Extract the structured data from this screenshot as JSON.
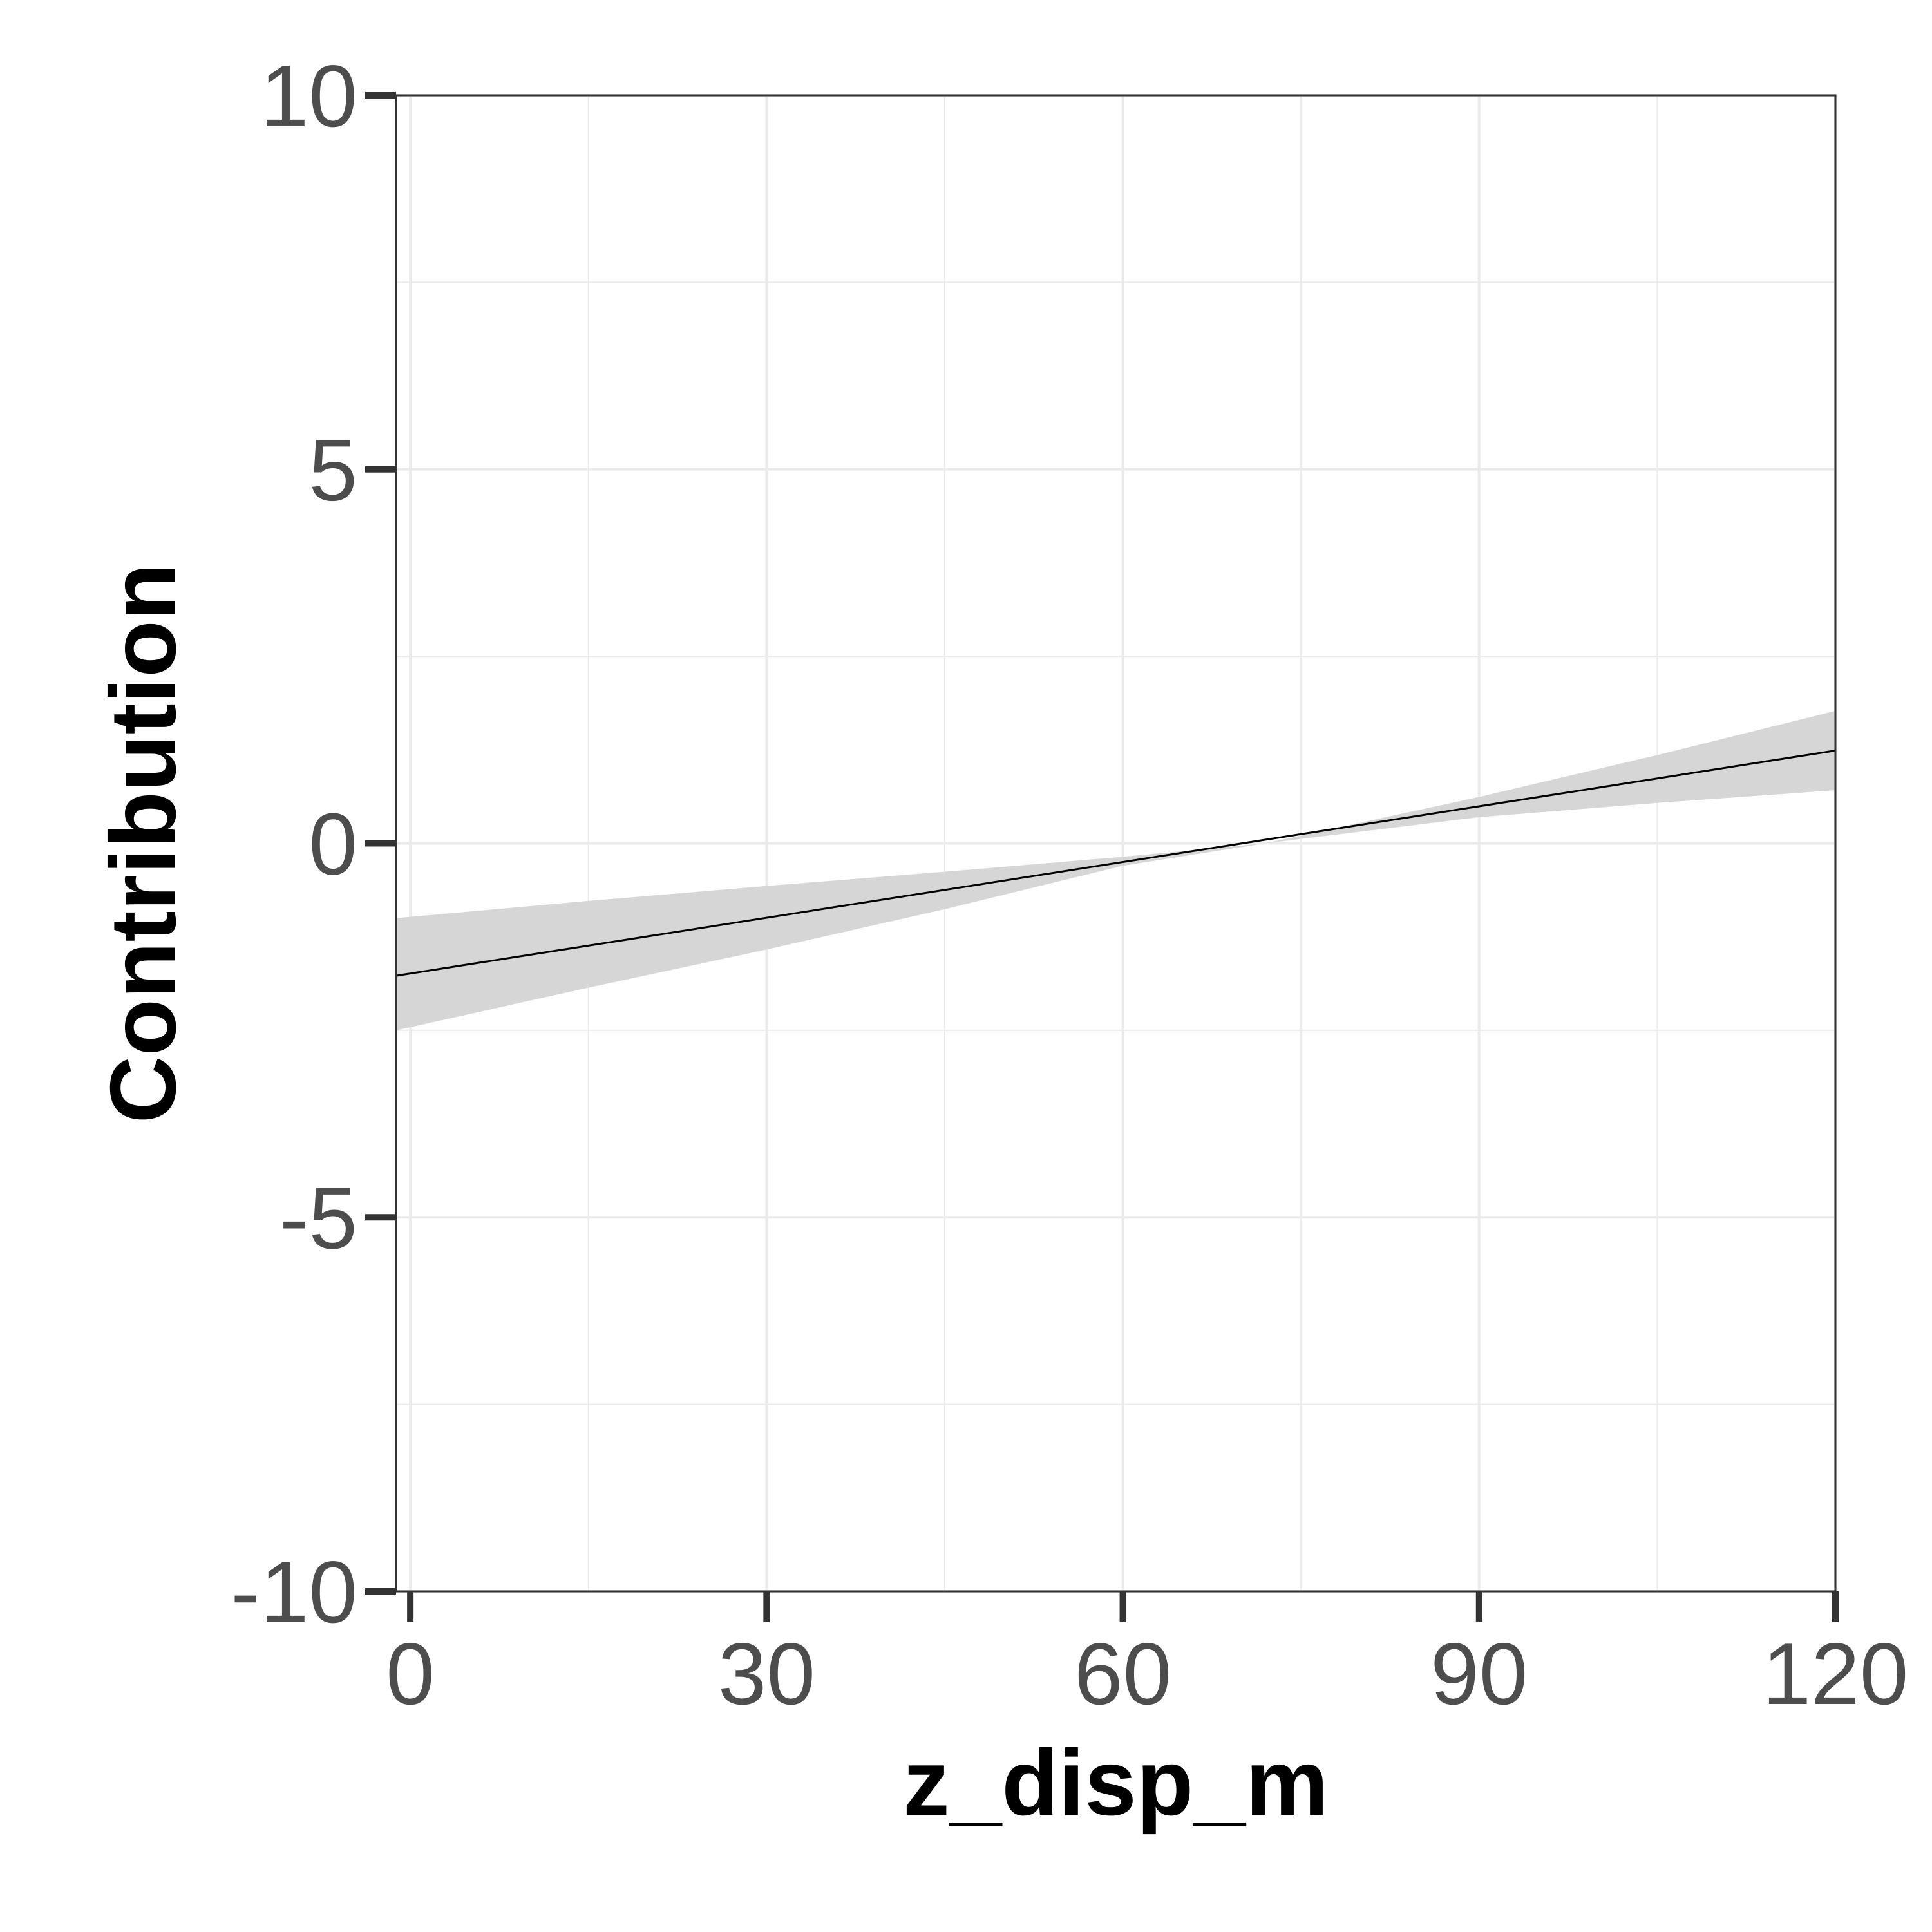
{
  "chart_data": {
    "type": "line",
    "title": "",
    "xlabel": "z_disp_m",
    "ylabel": "Contribution",
    "xlim": [
      -1.2,
      120
    ],
    "ylim": [
      -10,
      10
    ],
    "x_ticks": [
      0,
      30,
      60,
      90,
      120
    ],
    "y_ticks": [
      10,
      5,
      0,
      -5,
      -10
    ],
    "x_minor": [
      15,
      45,
      75,
      105
    ],
    "y_minor": [
      7.5,
      2.5,
      -2.5,
      -7.5
    ],
    "grid": true,
    "legend": "none",
    "series": [
      {
        "x": [
          -1.2,
          120
        ],
        "y": [
          -1.77,
          1.24
        ]
      }
    ],
    "band": {
      "x": [
        -1.2,
        15,
        30,
        45,
        60,
        72,
        90,
        105,
        120
      ],
      "upper": [
        -1.0,
        -0.77,
        -0.57,
        -0.38,
        -0.18,
        0.0,
        0.62,
        1.18,
        1.77
      ],
      "lower": [
        -2.5,
        -1.93,
        -1.42,
        -0.88,
        -0.3,
        0.0,
        0.35,
        0.54,
        0.71
      ]
    },
    "colors": {
      "line": "#000000",
      "band": "#d6d6d6",
      "grid": "#ebebeb",
      "frame": "#333333"
    }
  }
}
